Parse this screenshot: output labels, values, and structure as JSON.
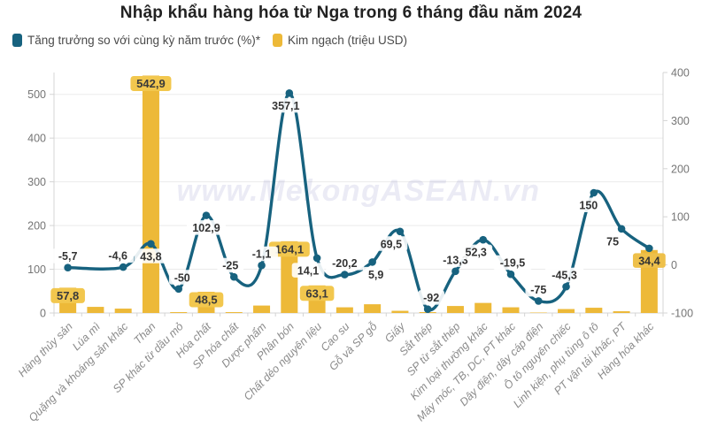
{
  "title": "Nhập khẩu hàng hóa từ Nga trong 6 tháng đầu năm 2024",
  "legend": [
    {
      "label": "Tăng trưởng so với cùng kỳ năm trước (%)*",
      "color": "#17627f"
    },
    {
      "label": "Kim ngạch (triệu USD)",
      "color": "#edb938"
    }
  ],
  "watermark": "www.MekongASEAN.vn",
  "colors": {
    "bar": "#edb938",
    "bar_label_bg": "#f2c74e",
    "line": "#17627f",
    "line_label_bg": "#ffffff",
    "line_label_bg_last": "#eec04a",
    "grid": "#ebebeb",
    "axis": "#d4d4d4",
    "tick_text": "#757575",
    "xlabel_text": "#8a8a8a",
    "label_text": "#3a3a3a",
    "watermark": "#6161ae"
  },
  "chart_data": {
    "type": "combo-bar-line",
    "title": "Nhập khẩu hàng hóa từ Nga trong 6 tháng đầu năm 2024",
    "legend_position": "top-left",
    "grid": true,
    "categories": [
      "Hàng thủy sản",
      "Lúa mì",
      "Quặng và khoáng sản khác",
      "Than",
      "SP khác từ dầu mỏ",
      "Hóa chất",
      "SP hóa chất",
      "Dược phẩm",
      "Phân bón",
      "Chất dẻo nguyên liệu",
      "Cao su",
      "Gỗ và SP gỗ",
      "Giấy",
      "Sắt thép",
      "SP từ sắt thép",
      "Kim loại thường khác",
      "Máy móc, TB, DC, PT khác",
      "Dây điện, dây cáp điện",
      "Ô tô nguyên chiếc",
      "Linh kiện, phụ tùng ô tô",
      "PT vận tải khác, PT",
      "Hàng hóa khác"
    ],
    "series": [
      {
        "name": "Kim ngạch (triệu USD)",
        "type": "bar",
        "axis": "left",
        "values": [
          57.8,
          14,
          10,
          542.9,
          2,
          48.5,
          2,
          17,
          164.1,
          63.1,
          13,
          20,
          5,
          2,
          16,
          23,
          13,
          1,
          9,
          12,
          4,
          144
        ],
        "labels": [
          "57,8",
          "",
          "",
          "542,9",
          "",
          "48,5",
          "",
          "",
          "164,1",
          "63,1",
          "",
          "",
          "",
          "",
          "",
          "",
          "",
          "",
          "",
          "",
          "",
          ""
        ],
        "note": "values without printed labels are estimated from bar pixel heights"
      },
      {
        "name": "Tăng trưởng so với cùng kỳ năm trước (%)*",
        "type": "line",
        "axis": "right",
        "values": [
          -5.7,
          null,
          -4.6,
          43.8,
          -50,
          102.9,
          -25,
          -1.1,
          357.1,
          14.1,
          -20.2,
          5.9,
          69.5,
          -92,
          -13.3,
          52.3,
          -19.5,
          -75,
          -45.3,
          150,
          75,
          34.4
        ],
        "labels": [
          "-5,7",
          "",
          "-4,6",
          "43,8",
          "-50",
          "102,9",
          "-25",
          "-1,1",
          "357,1",
          "14,1",
          "-20,2",
          "5,9",
          "69,5",
          "-92",
          "-13,3",
          "52,3",
          "-19,5",
          "-75",
          "-45,3",
          "150",
          "75",
          "34,4"
        ],
        "label_side": [
          "above",
          null,
          "above",
          "below",
          "above",
          "below",
          "above",
          "above",
          "below",
          "below",
          "above",
          "below",
          "below",
          "above",
          "above",
          "below",
          "above",
          "above",
          "above",
          "below",
          "below",
          "below"
        ],
        "label_dx": [
          0,
          0,
          -6,
          0,
          4,
          0,
          -4,
          0,
          -4,
          -10,
          0,
          4,
          -10,
          4,
          0,
          -8,
          2,
          0,
          -2,
          -6,
          -10,
          0
        ]
      }
    ],
    "left_axis": {
      "ticks": [
        0,
        100,
        200,
        300,
        400,
        500
      ],
      "min": 0,
      "max": 550
    },
    "right_axis": {
      "ticks": [
        -100,
        0,
        100,
        200,
        300,
        400
      ],
      "min": -100,
      "max": 400
    }
  }
}
